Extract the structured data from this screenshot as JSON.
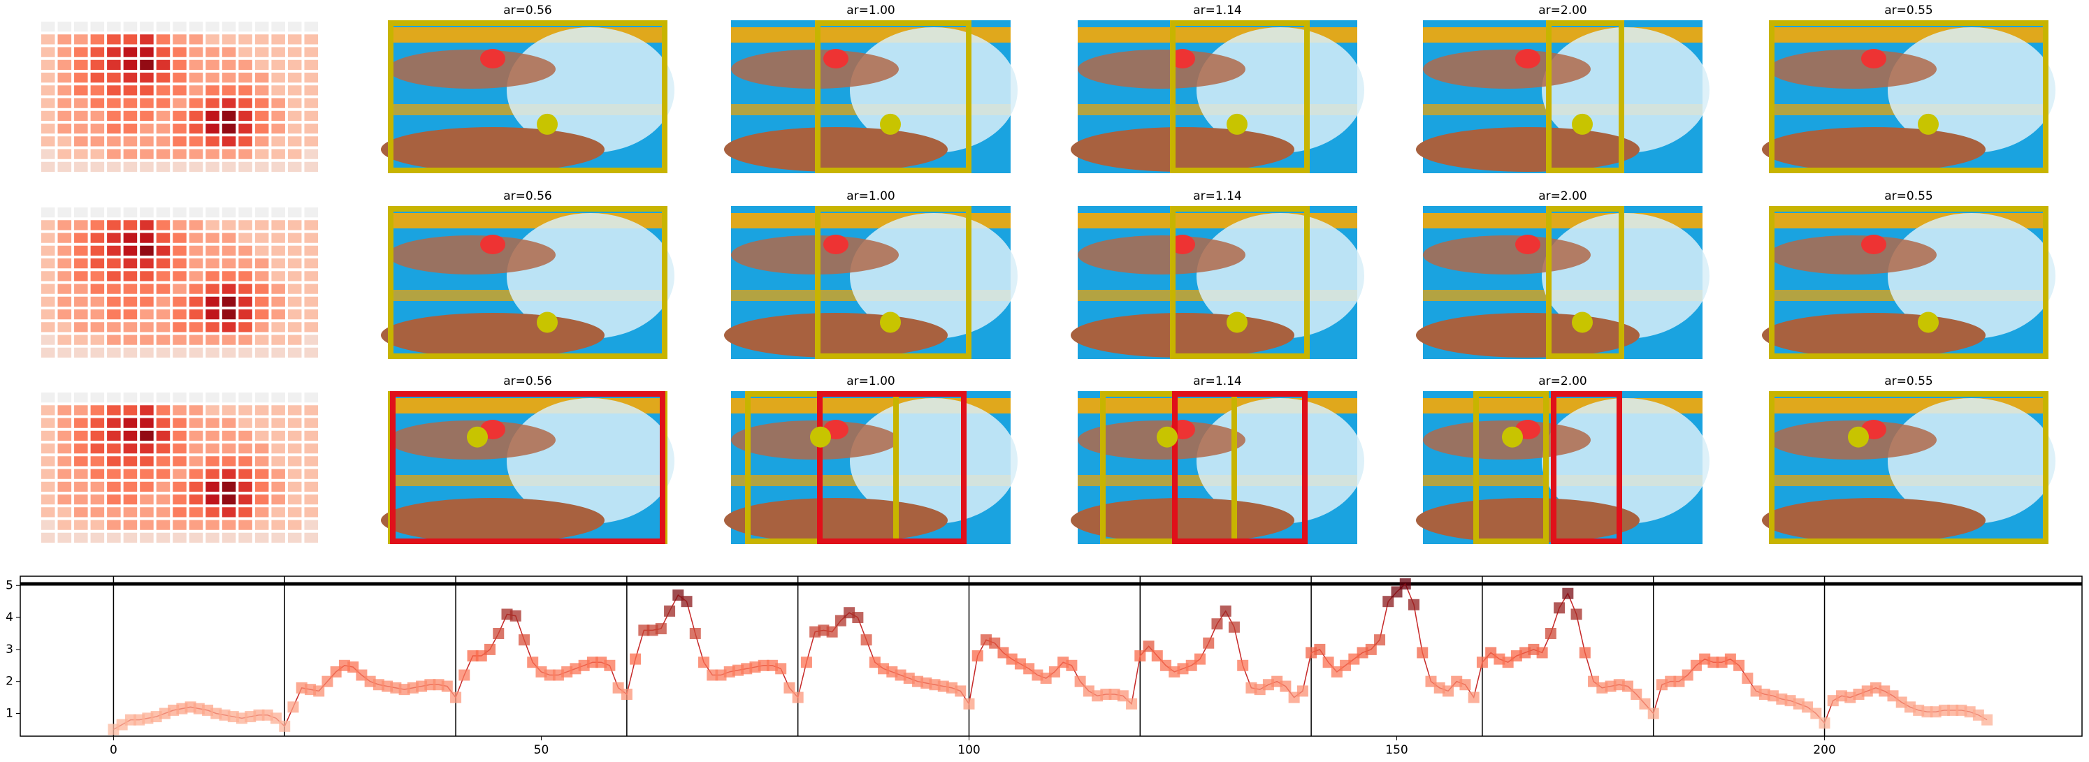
{
  "heatmap": {
    "type": "heatmap",
    "colors": [
      "#f0f0f0",
      "#fcbba1",
      "#fb6a4a",
      "#cb181d",
      "#67000d"
    ],
    "vmax": 9,
    "values": [
      [
        0,
        0,
        0,
        0,
        0,
        0,
        0,
        0,
        0,
        0,
        0,
        0,
        0,
        0,
        0,
        0,
        0
      ],
      [
        2,
        3,
        3,
        4,
        5,
        5,
        6,
        4,
        3,
        3,
        2,
        2,
        2,
        2,
        2,
        2,
        2
      ],
      [
        2,
        3,
        4,
        5,
        6,
        7,
        7,
        5,
        4,
        3,
        3,
        3,
        2,
        2,
        2,
        2,
        2
      ],
      [
        2,
        3,
        4,
        5,
        6,
        7,
        8,
        6,
        4,
        3,
        3,
        3,
        3,
        2,
        2,
        2,
        2
      ],
      [
        2,
        3,
        4,
        5,
        5,
        6,
        6,
        5,
        4,
        3,
        3,
        3,
        3,
        3,
        2,
        2,
        2
      ],
      [
        2,
        3,
        4,
        4,
        5,
        5,
        5,
        4,
        4,
        3,
        4,
        4,
        4,
        3,
        2,
        2,
        2
      ],
      [
        2,
        3,
        3,
        4,
        4,
        4,
        4,
        4,
        3,
        4,
        5,
        6,
        5,
        4,
        3,
        2,
        2
      ],
      [
        2,
        3,
        3,
        3,
        4,
        4,
        4,
        3,
        4,
        5,
        7,
        8,
        6,
        4,
        3,
        2,
        2
      ],
      [
        2,
        3,
        3,
        3,
        4,
        4,
        3,
        3,
        4,
        5,
        7,
        8,
        6,
        4,
        3,
        2,
        2
      ],
      [
        2,
        2,
        3,
        3,
        3,
        3,
        3,
        3,
        4,
        4,
        5,
        6,
        5,
        3,
        2,
        2,
        2
      ],
      [
        1,
        2,
        2,
        2,
        3,
        3,
        3,
        3,
        3,
        3,
        3,
        3,
        3,
        2,
        2,
        2,
        1
      ],
      [
        1,
        1,
        1,
        1,
        1,
        1,
        1,
        1,
        1,
        1,
        1,
        1,
        1,
        1,
        1,
        1,
        1
      ]
    ]
  },
  "image_titles": [
    [
      "ar=0.56",
      "ar=1.00",
      "ar=1.14",
      "ar=2.00",
      "ar=0.55"
    ],
    [
      "ar=0.56",
      "ar=1.00",
      "ar=1.14",
      "ar=2.00",
      "ar=0.55"
    ],
    [
      "ar=0.56",
      "ar=1.00",
      "ar=1.14",
      "ar=2.00",
      "ar=0.55"
    ]
  ],
  "chart_data": {
    "type": "line",
    "x": [
      0,
      1,
      2,
      3,
      4,
      5,
      6,
      7,
      8,
      9,
      10,
      11,
      12,
      13,
      14,
      15,
      16,
      17,
      18,
      19,
      20,
      21,
      22,
      23,
      24,
      25,
      26,
      27,
      28,
      29,
      30,
      31,
      32,
      33,
      34,
      35,
      36,
      37,
      38,
      39,
      40,
      41,
      42,
      43,
      44,
      45,
      46,
      47,
      48,
      49,
      50,
      51,
      52,
      53,
      54,
      55,
      56,
      57,
      58,
      59,
      60,
      61,
      62,
      63,
      64,
      65,
      66,
      67,
      68,
      69,
      70,
      71,
      72,
      73,
      74,
      75,
      76,
      77,
      78,
      79,
      80,
      81,
      82,
      83,
      84,
      85,
      86,
      87,
      88,
      89,
      90,
      91,
      92,
      93,
      94,
      95,
      96,
      97,
      98,
      99,
      100,
      101,
      102,
      103,
      104,
      105,
      106,
      107,
      108,
      109,
      110,
      111,
      112,
      113,
      114,
      115,
      116,
      117,
      118,
      119,
      120,
      121,
      122,
      123,
      124,
      125,
      126,
      127,
      128,
      129,
      130,
      131,
      132,
      133,
      134,
      135,
      136,
      137,
      138,
      139,
      140,
      141,
      142,
      143,
      144,
      145,
      146,
      147,
      148,
      149,
      150,
      151,
      152,
      153,
      154,
      155,
      156,
      157,
      158,
      159,
      160,
      161,
      162,
      163,
      164,
      165,
      166,
      167,
      168,
      169,
      170,
      171,
      172,
      173,
      174,
      175,
      176,
      177,
      178,
      179,
      180,
      181,
      182,
      183,
      184,
      185,
      186,
      187,
      188,
      189,
      190,
      191,
      192,
      193,
      194,
      195,
      196,
      197,
      198,
      199,
      200,
      201,
      202,
      203,
      204,
      205,
      206,
      207,
      208,
      209,
      210,
      211,
      212,
      213,
      214,
      215,
      216,
      217,
      218,
      219
    ],
    "series": [
      {
        "color": "#c62828",
        "values": [
          0.5,
          0.65,
          0.8,
          0.8,
          0.85,
          0.9,
          1.0,
          1.1,
          1.15,
          1.2,
          1.15,
          1.1,
          1.0,
          0.95,
          0.9,
          0.85,
          0.9,
          0.95,
          0.95,
          0.85,
          0.6,
          1.2,
          1.8,
          1.75,
          1.7,
          2.0,
          2.3,
          2.5,
          2.45,
          2.2,
          2.0,
          1.9,
          1.85,
          1.8,
          1.75,
          1.8,
          1.85,
          1.9,
          1.9,
          1.85,
          1.5,
          2.2,
          2.8,
          2.8,
          3.0,
          3.5,
          4.1,
          4.05,
          3.3,
          2.6,
          2.3,
          2.2,
          2.2,
          2.3,
          2.4,
          2.5,
          2.6,
          2.6,
          2.5,
          1.8,
          1.6,
          2.7,
          3.6,
          3.6,
          3.65,
          4.2,
          4.7,
          4.5,
          3.5,
          2.6,
          2.2,
          2.2,
          2.3,
          2.35,
          2.4,
          2.45,
          2.5,
          2.5,
          2.4,
          1.8,
          1.5,
          2.6,
          3.55,
          3.6,
          3.55,
          3.9,
          4.15,
          4.0,
          3.3,
          2.6,
          2.4,
          2.3,
          2.2,
          2.1,
          2.0,
          1.95,
          1.9,
          1.85,
          1.8,
          1.7,
          1.3,
          2.8,
          3.3,
          3.2,
          2.9,
          2.7,
          2.55,
          2.4,
          2.2,
          2.1,
          2.3,
          2.6,
          2.5,
          2.0,
          1.7,
          1.55,
          1.6,
          1.6,
          1.55,
          1.3,
          2.8,
          3.1,
          2.8,
          2.5,
          2.3,
          2.4,
          2.5,
          2.7,
          3.2,
          3.8,
          4.2,
          3.7,
          2.5,
          1.8,
          1.75,
          1.9,
          2.0,
          1.85,
          1.5,
          1.7,
          2.9,
          3.0,
          2.6,
          2.3,
          2.5,
          2.7,
          2.9,
          3.0,
          3.3,
          4.5,
          4.8,
          5.05,
          4.4,
          2.9,
          2.0,
          1.8,
          1.7,
          2.0,
          1.9,
          1.5,
          2.6,
          2.9,
          2.7,
          2.6,
          2.8,
          2.9,
          3.0,
          2.9,
          3.5,
          4.3,
          4.75,
          4.1,
          2.9,
          2.0,
          1.8,
          1.85,
          1.9,
          1.85,
          1.6,
          1.3,
          1.0,
          1.9,
          2.0,
          2.0,
          2.2,
          2.5,
          2.7,
          2.6,
          2.6,
          2.7,
          2.5,
          2.1,
          1.7,
          1.6,
          1.55,
          1.45,
          1.4,
          1.3,
          1.2,
          1.0,
          0.7,
          1.4,
          1.55,
          1.5,
          1.6,
          1.7,
          1.8,
          1.7,
          1.55,
          1.35,
          1.2,
          1.1,
          1.05,
          1.05,
          1.1,
          1.1,
          1.1,
          1.05,
          0.95,
          0.8
        ]
      }
    ],
    "marker_colors": [
      "#fcbba1",
      "#fb6a4a",
      "#67000d"
    ],
    "xlim": [
      -10.9,
      230.1
    ],
    "ylim": [
      0.29,
      5.29
    ],
    "xticks": [
      0,
      50,
      100,
      150,
      200
    ],
    "yticks": [
      1,
      2,
      3,
      4,
      5
    ],
    "vlines": [
      0,
      20,
      40,
      60,
      80,
      100,
      120,
      140,
      160,
      180,
      200
    ],
    "hlines": [
      5.05
    ]
  }
}
